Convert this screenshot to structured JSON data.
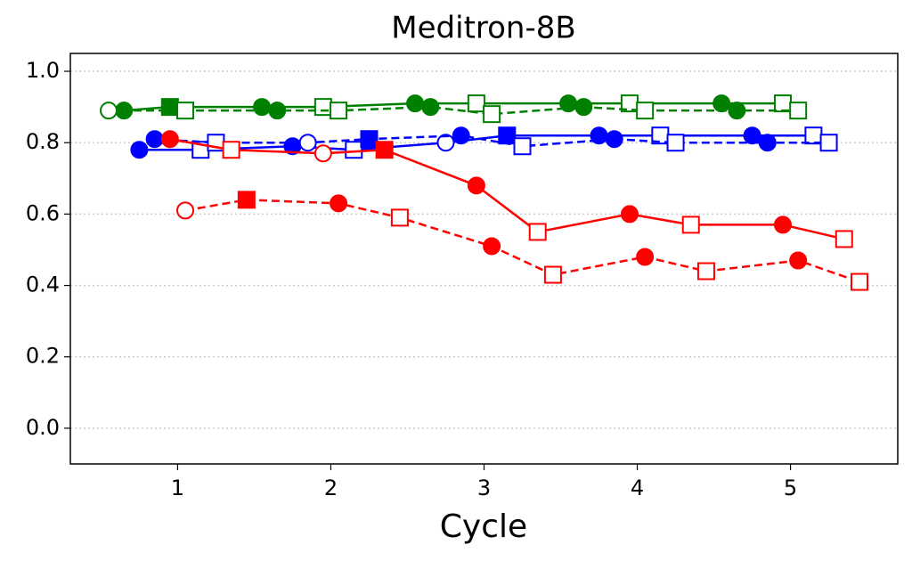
{
  "chart_data": {
    "type": "line",
    "title": "Meditron-8B",
    "x_label": "Cycle",
    "xlim": [
      0.3,
      5.7
    ],
    "xticks": [
      1,
      2,
      3,
      4,
      5
    ],
    "ylim": [
      -0.1,
      1.05
    ],
    "yticks": [
      {
        "value": 0,
        "label": "0.0"
      },
      0.2,
      0.4,
      0.6,
      0.8,
      {
        "value": 1,
        "label": "1.0"
      }
    ],
    "grid": "y",
    "series": [
      {
        "color": "#008000",
        "dash": "solid",
        "x": [
          0.65,
          0.95,
          1.55,
          1.95,
          2.55,
          2.95,
          3.55,
          3.95,
          4.55,
          4.95
        ],
        "values": [
          0.89,
          0.9,
          0.9,
          0.9,
          0.91,
          0.91,
          0.91,
          0.91,
          0.91,
          0.91
        ],
        "markers": [
          "circle",
          "square",
          "circle",
          "open-square",
          "circle",
          "open-square",
          "circle",
          "open-square",
          "circle",
          "open-square"
        ]
      },
      {
        "color": "#008000",
        "dash": "dashed",
        "x": [
          0.55,
          1.05,
          1.65,
          2.05,
          2.65,
          3.05,
          3.65,
          4.05,
          4.65,
          5.05
        ],
        "values": [
          0.89,
          0.89,
          0.89,
          0.89,
          0.9,
          0.88,
          0.9,
          0.89,
          0.89,
          0.89
        ],
        "markers": [
          "open-circle",
          "open-square",
          "circle",
          "open-square",
          "circle",
          "open-square",
          "circle",
          "open-square",
          "circle",
          "open-square"
        ]
      },
      {
        "color": "#0000ff",
        "dash": "solid",
        "x": [
          0.75,
          1.15,
          1.75,
          2.15,
          2.75,
          3.15,
          3.75,
          4.15,
          4.75,
          5.15
        ],
        "values": [
          0.78,
          0.78,
          0.79,
          0.78,
          0.8,
          0.82,
          0.82,
          0.82,
          0.82,
          0.82
        ],
        "markers": [
          "circle",
          "open-square",
          "circle",
          "open-square",
          "open-circle",
          "square",
          "circle",
          "open-square",
          "circle",
          "open-square"
        ]
      },
      {
        "color": "#0000ff",
        "dash": "dashed",
        "x": [
          0.85,
          1.25,
          1.85,
          2.25,
          2.85,
          3.25,
          3.85,
          4.25,
          4.85,
          5.25
        ],
        "values": [
          0.81,
          0.8,
          0.8,
          0.81,
          0.82,
          0.79,
          0.81,
          0.8,
          0.8,
          0.8
        ],
        "markers": [
          "circle",
          "open-square",
          "open-circle",
          "square",
          "circle",
          "open-square",
          "circle",
          "open-square",
          "circle",
          "open-square"
        ]
      },
      {
        "color": "#ff0000",
        "dash": "solid",
        "x": [
          0.95,
          1.35,
          1.95,
          2.35,
          2.95,
          3.35,
          3.95,
          4.35,
          4.95,
          5.35
        ],
        "values": [
          0.81,
          0.78,
          0.77,
          0.78,
          0.68,
          0.55,
          0.6,
          0.57,
          0.57,
          0.53
        ],
        "markers": [
          "circle",
          "open-square",
          "open-circle",
          "square",
          "circle",
          "open-square",
          "circle",
          "open-square",
          "circle",
          "open-square"
        ]
      },
      {
        "color": "#ff0000",
        "dash": "dashed",
        "x": [
          1.05,
          1.45,
          2.05,
          2.45,
          3.05,
          3.45,
          4.05,
          4.45,
          5.05,
          5.45
        ],
        "values": [
          0.61,
          0.64,
          0.63,
          0.59,
          0.51,
          0.43,
          0.48,
          0.44,
          0.47,
          0.41
        ],
        "markers": [
          "open-circle",
          "square",
          "circle",
          "open-square",
          "circle",
          "open-square",
          "circle",
          "open-square",
          "circle",
          "open-square"
        ]
      }
    ]
  }
}
